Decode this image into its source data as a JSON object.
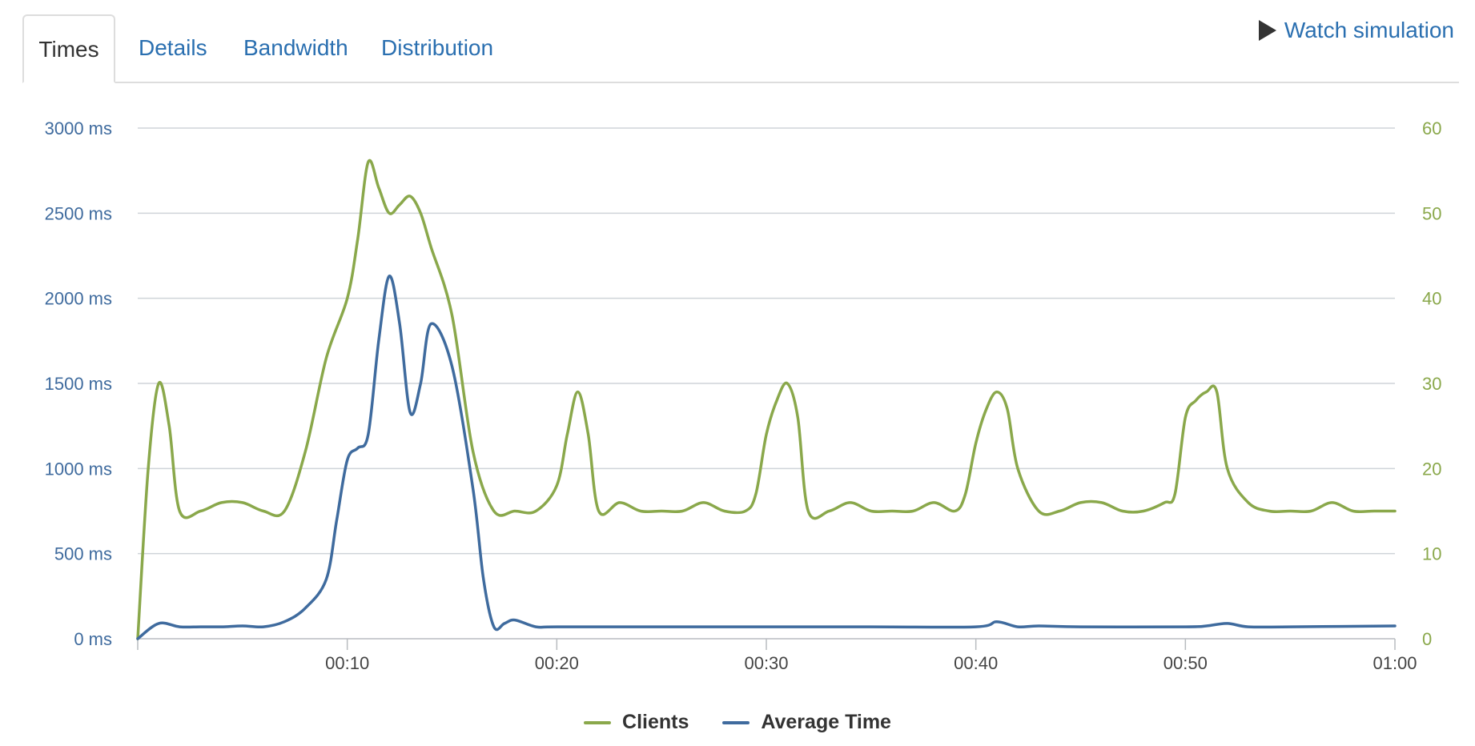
{
  "tabs": [
    {
      "label": "Times",
      "active": true
    },
    {
      "label": "Details",
      "active": false
    },
    {
      "label": "Bandwidth",
      "active": false
    },
    {
      "label": "Distribution",
      "active": false
    }
  ],
  "watch_label": "Watch simulation",
  "colors": {
    "clients": "#8aa84b",
    "average_time": "#3f6b9e",
    "grid": "#cfd4d9",
    "axis_left": "#3f6b9e",
    "axis_right": "#8aa84b"
  },
  "chart_data": {
    "type": "line",
    "x_ticks": [
      "00:10",
      "00:20",
      "00:30",
      "00:40",
      "00:50",
      "01:00"
    ],
    "y_left_ticks": [
      "0 ms",
      "500 ms",
      "1000 ms",
      "1500 ms",
      "2000 ms",
      "2500 ms",
      "3000 ms"
    ],
    "y_right_ticks": [
      "0",
      "10",
      "20",
      "30",
      "40",
      "50",
      "60"
    ],
    "xlim": [
      0,
      60
    ],
    "ylim_left": [
      0,
      3000
    ],
    "ylim_right": [
      0,
      60
    ],
    "grid": true,
    "legend_position": "bottom-center",
    "series": [
      {
        "name": "Clients",
        "axis": "right",
        "x": [
          0,
          0.5,
          1,
          1.5,
          2,
          3,
          4,
          5,
          6,
          7,
          8,
          9,
          10,
          10.5,
          11,
          11.5,
          12,
          12.5,
          13,
          13.5,
          14,
          15,
          16,
          17,
          18,
          19,
          20,
          20.5,
          21,
          21.5,
          22,
          23,
          24,
          25,
          26,
          27,
          28,
          29,
          29.5,
          30,
          30.5,
          31,
          31.5,
          32,
          33,
          34,
          35,
          36,
          37,
          38,
          39,
          39.5,
          40,
          40.5,
          41,
          41.5,
          42,
          43,
          44,
          45,
          46,
          47,
          48,
          49,
          49.5,
          50,
          50.5,
          51,
          51.5,
          52,
          53,
          54,
          55,
          56,
          57,
          58,
          59,
          60
        ],
        "y": [
          0,
          20,
          30,
          25,
          15,
          15,
          16,
          16,
          15,
          15,
          22,
          33,
          40,
          47,
          56,
          53,
          50,
          51,
          52,
          50,
          46,
          38,
          22,
          15,
          15,
          15,
          18,
          24,
          29,
          24,
          15,
          16,
          15,
          15,
          15,
          16,
          15,
          15,
          17,
          24,
          28,
          30,
          26,
          15,
          15,
          16,
          15,
          15,
          15,
          16,
          15,
          17,
          23,
          27,
          29,
          27,
          20,
          15,
          15,
          16,
          16,
          15,
          15,
          16,
          17,
          26,
          28,
          29,
          29,
          20,
          16,
          15,
          15,
          15,
          16,
          15,
          15,
          15
        ]
      },
      {
        "name": "Average Time",
        "axis": "left",
        "x": [
          0,
          1,
          2,
          3,
          4,
          5,
          6,
          7,
          8,
          9,
          9.5,
          10,
          10.5,
          11,
          11.5,
          12,
          12.5,
          13,
          13.5,
          14,
          15,
          16,
          16.5,
          17,
          17.5,
          18,
          19,
          20,
          25,
          30,
          35,
          40,
          41,
          42,
          43,
          45,
          50,
          51,
          52,
          53,
          55,
          60
        ],
        "y": [
          0,
          90,
          70,
          70,
          70,
          75,
          70,
          100,
          180,
          350,
          700,
          1050,
          1120,
          1200,
          1750,
          2130,
          1850,
          1330,
          1500,
          1850,
          1600,
          880,
          350,
          70,
          90,
          110,
          70,
          70,
          70,
          70,
          70,
          70,
          100,
          70,
          75,
          70,
          70,
          75,
          90,
          70,
          70,
          75
        ]
      }
    ]
  }
}
